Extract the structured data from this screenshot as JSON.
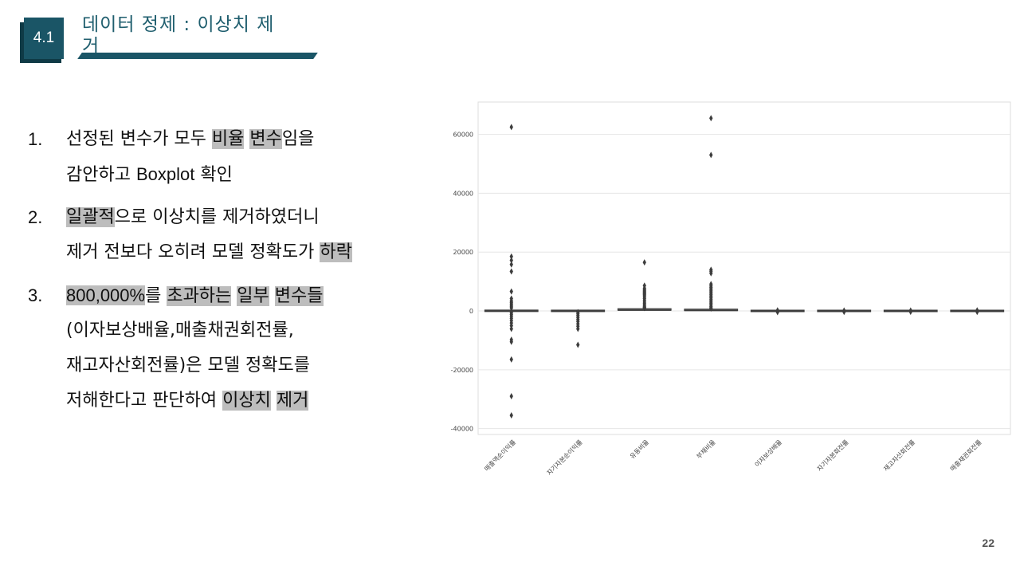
{
  "header": {
    "section_number": "4.1",
    "title": "데이터 정제 : 이상치 제거"
  },
  "bullets": [
    {
      "num": "1.",
      "lines": [
        [
          {
            "t": "선정된 변수가 모두 "
          },
          {
            "t": "비율",
            "hl": true
          },
          {
            "t": " "
          },
          {
            "t": "변수",
            "hl": true
          },
          {
            "t": "임을"
          }
        ],
        [
          {
            "t": "감안하고 "
          },
          {
            "t": "Boxplot",
            "latin": true
          },
          {
            "t": " 확인"
          }
        ]
      ]
    },
    {
      "num": "2.",
      "lines": [
        [
          {
            "t": "일괄적",
            "hl": true
          },
          {
            "t": "으로 이상치를 제거하였더니"
          }
        ],
        [
          {
            "t": "제거 전보다 오히려 모델 정확도가 "
          },
          {
            "t": "하락",
            "hl": true
          }
        ]
      ]
    },
    {
      "num": "3.",
      "lines": [
        [
          {
            "t": "800,000%",
            "hl": true,
            "latin": true
          },
          {
            "t": "를 "
          },
          {
            "t": "초과하는",
            "hl": true
          },
          {
            "t": " "
          },
          {
            "t": "일부",
            "hl": true
          },
          {
            "t": " "
          },
          {
            "t": "변수들",
            "hl": true
          }
        ],
        [
          {
            "t": "(이자보상배율,매출채권회전률,"
          }
        ],
        [
          {
            "t": "재고자산회전률)은 모델 정확도를"
          }
        ],
        [
          {
            "t": "저해한다고 판단하여 "
          },
          {
            "t": "이상치",
            "hl": true
          },
          {
            "t": " "
          },
          {
            "t": "제거",
            "hl": true
          }
        ]
      ]
    }
  ],
  "chart_data": {
    "type": "boxplot",
    "ylim": [
      -42000,
      71000
    ],
    "yticks": [
      -40000,
      -20000,
      0,
      20000,
      40000,
      60000
    ],
    "ytick_labels": [
      "‐40000",
      "‐20000",
      "0",
      "20000",
      "40000",
      "60000"
    ],
    "grid": true,
    "categories": [
      "매출액순이익률",
      "자기자본순이익률",
      "유동비율",
      "부채비율",
      "이자보상배율",
      "자기자본회전률",
      "재고자산회전률",
      "매출채권회전률"
    ],
    "series": [
      {
        "box": [
          -40,
          0,
          40
        ],
        "whisker": [
          -200,
          200
        ],
        "outliers": [
          62500,
          18500,
          17200,
          15800,
          13400,
          6600,
          4200,
          3400,
          2900,
          2400,
          1900,
          1400,
          1000,
          -600,
          -1200,
          -1800,
          -2500,
          -3300,
          -4100,
          -5000,
          -6100,
          -9800,
          -10500,
          -16500,
          -29000,
          -35500
        ]
      },
      {
        "box": [
          -20,
          0,
          20
        ],
        "whisker": [
          -100,
          100
        ],
        "outliers": [
          -400,
          -900,
          -1500,
          -2200,
          -2900,
          -3600,
          -4400,
          -5200,
          -6100,
          -11500
        ]
      },
      {
        "box": [
          100,
          250,
          500
        ],
        "whisker": [
          0,
          900
        ],
        "outliers": [
          16500,
          8600,
          7700,
          7200,
          6800,
          6500,
          6200,
          5900,
          5600,
          5200,
          4700,
          4200,
          3600,
          3000,
          2500,
          2000,
          1600,
          1300,
          1100,
          1000
        ]
      },
      {
        "box": [
          50,
          150,
          350
        ],
        "whisker": [
          0,
          600
        ],
        "outliers": [
          65500,
          53000,
          14000,
          13500,
          12800,
          9100,
          8500,
          8000,
          7500,
          7000,
          6500,
          6000,
          5500,
          5000,
          4500,
          4000,
          3500,
          3000,
          2500,
          2000,
          1500,
          1100,
          800
        ]
      },
      {
        "box": [
          -5,
          0,
          5
        ],
        "whisker": [
          -20,
          20
        ],
        "outliers": [
          -400,
          200
        ]
      },
      {
        "box": [
          -5,
          0,
          5
        ],
        "whisker": [
          -20,
          20
        ],
        "outliers": [
          -350,
          150
        ]
      },
      {
        "box": [
          -5,
          0,
          5
        ],
        "whisker": [
          -20,
          20
        ],
        "outliers": [
          -300,
          150
        ]
      },
      {
        "box": [
          -5,
          0,
          5
        ],
        "whisker": [
          -20,
          20
        ],
        "outliers": [
          -350,
          200
        ]
      }
    ],
    "colors": {
      "box": "#3d3d3d",
      "grid": "#e6e6e6",
      "frame": "#dddddd",
      "text": "#444444"
    }
  },
  "page_number": "22"
}
